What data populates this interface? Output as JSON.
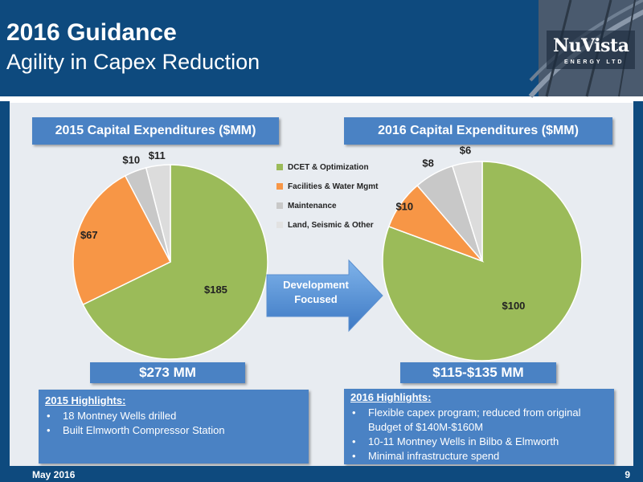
{
  "header": {
    "title": "2016 Guidance",
    "subtitle": "Agility in Capex Reduction"
  },
  "logo": {
    "name": "NuVista",
    "tagline": "ENERGY LTD"
  },
  "arrow": {
    "line1": "Development",
    "line2": "Focused"
  },
  "left": {
    "section_title": "2015 Capital Expenditures ($MM)",
    "total": "$273 MM",
    "highlights_title": "2015 Highlights:",
    "highlights": [
      "18 Montney Wells drilled",
      "Built Elmworth Compressor Station"
    ]
  },
  "right": {
    "section_title": "2016 Capital Expenditures ($MM)",
    "total": "$115-$135 MM",
    "highlights_title": "2016 Highlights:",
    "highlights": [
      "Flexible capex program; reduced from original Budget of $140M-$160M",
      "10-11 Montney Wells in Bilbo & Elmworth",
      "Minimal infrastructure spend"
    ]
  },
  "footer": {
    "date": "May 2016",
    "page": "9"
  },
  "chart_data": [
    {
      "type": "pie",
      "title": "2015 Capital Expenditures ($MM)",
      "categories": [
        "DCET & Optimization",
        "Facilities & Water Mgmt",
        "Maintenance",
        "Land, Seismic & Other"
      ],
      "values": [
        185,
        67,
        10,
        11
      ],
      "labels": [
        "$185",
        "$67",
        "$10",
        "$11"
      ],
      "colors": [
        "#9bbb59",
        "#f79646",
        "#c8c8c8",
        "#dcdcdc"
      ]
    },
    {
      "type": "pie",
      "title": "2016 Capital Expenditures ($MM)",
      "categories": [
        "DCET & Optimization",
        "Facilities & Water Mgmt",
        "Maintenance",
        "Land, Seismic & Other"
      ],
      "values": [
        100,
        10,
        8,
        6
      ],
      "labels": [
        "$100",
        "$10",
        "$8",
        "$6"
      ],
      "colors": [
        "#9bbb59",
        "#f79646",
        "#c8c8c8",
        "#dcdcdc"
      ],
      "legend_position": "left"
    }
  ]
}
